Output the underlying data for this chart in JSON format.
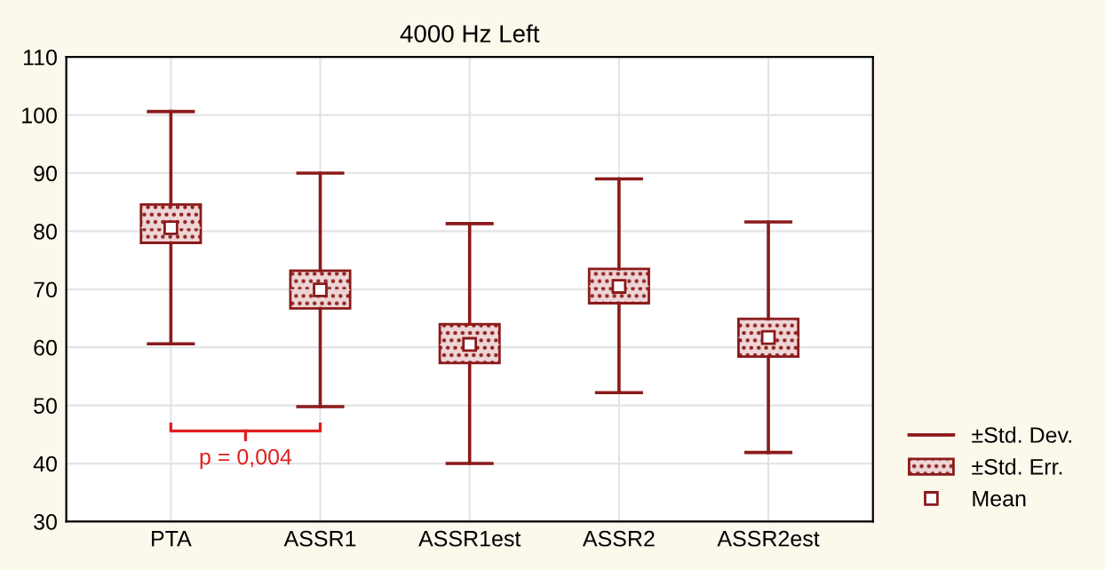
{
  "chart_data": {
    "type": "box",
    "title": "4000 Hz Left",
    "categories": [
      "PTA",
      "ASSR1",
      "ASSR1est",
      "ASSR2",
      "ASSR2est"
    ],
    "series": [
      {
        "name": "±Std. Dev.",
        "color": "#8b1a1a",
        "boxes": [
          {
            "low": 60.6,
            "q1": 78.0,
            "median": 80.6,
            "q3": 84.6,
            "high": 100.6,
            "mean": 80.6
          },
          {
            "low": 49.8,
            "q1": 66.7,
            "median": 69.9,
            "q3": 73.2,
            "high": 90.0,
            "mean": 69.9
          },
          {
            "low": 40.0,
            "q1": 57.3,
            "median": 60.5,
            "q3": 64.0,
            "high": 81.3,
            "mean": 60.5
          },
          {
            "low": 52.2,
            "q1": 67.6,
            "median": 70.5,
            "q3": 73.5,
            "high": 89.0,
            "mean": 70.5
          },
          {
            "low": 41.9,
            "q1": 58.4,
            "median": 61.7,
            "q3": 64.9,
            "high": 81.6,
            "mean": 61.7
          }
        ]
      }
    ],
    "ylim": [
      30,
      110
    ],
    "yticks": [
      30,
      40,
      50,
      60,
      70,
      80,
      90,
      100,
      110
    ],
    "grid": true,
    "legend": "right",
    "marker": "square",
    "annotations": [
      "p = 0,004",
      "±Std. Err.",
      "Mean"
    ]
  }
}
